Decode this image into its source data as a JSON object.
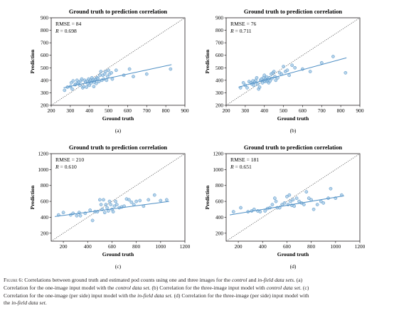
{
  "chart_data": [
    {
      "type": "scatter",
      "panel_label": "(a)",
      "title": "Ground truth to prediction correlation",
      "xlabel": "Ground truth",
      "ylabel": "Prediction",
      "xlim": [
        200,
        900
      ],
      "ylim": [
        200,
        900
      ],
      "xticks": [
        200,
        300,
        400,
        500,
        600,
        700,
        800,
        900
      ],
      "yticks": [
        200,
        300,
        400,
        500,
        600,
        700,
        800,
        900
      ],
      "stats": {
        "rmse": "RMSE = 84",
        "r": "R = 0.698"
      },
      "reference_line": "y = x (dotted)",
      "fit_line": {
        "x": [
          265,
          830
        ],
        "y": [
          340,
          525
        ]
      },
      "points": [
        [
          270,
          320
        ],
        [
          285,
          345
        ],
        [
          300,
          350
        ],
        [
          305,
          380
        ],
        [
          310,
          330
        ],
        [
          315,
          395
        ],
        [
          325,
          365
        ],
        [
          330,
          370
        ],
        [
          335,
          400
        ],
        [
          340,
          375
        ],
        [
          345,
          385
        ],
        [
          350,
          360
        ],
        [
          355,
          395
        ],
        [
          360,
          410
        ],
        [
          365,
          340
        ],
        [
          370,
          350
        ],
        [
          375,
          400
        ],
        [
          380,
          385
        ],
        [
          385,
          345
        ],
        [
          390,
          395
        ],
        [
          393,
          370
        ],
        [
          396,
          410
        ],
        [
          400,
          360
        ],
        [
          403,
          390
        ],
        [
          406,
          400
        ],
        [
          410,
          380
        ],
        [
          413,
          420
        ],
        [
          416,
          395
        ],
        [
          420,
          405
        ],
        [
          423,
          350
        ],
        [
          426,
          385
        ],
        [
          430,
          400
        ],
        [
          433,
          410
        ],
        [
          436,
          375
        ],
        [
          440,
          420
        ],
        [
          445,
          415
        ],
        [
          450,
          390
        ],
        [
          455,
          440
        ],
        [
          460,
          470
        ],
        [
          465,
          400
        ],
        [
          470,
          440
        ],
        [
          475,
          410
        ],
        [
          480,
          450
        ],
        [
          485,
          470
        ],
        [
          490,
          400
        ],
        [
          495,
          430
        ],
        [
          500,
          480
        ],
        [
          505,
          450
        ],
        [
          515,
          460
        ],
        [
          520,
          410
        ],
        [
          540,
          480
        ],
        [
          580,
          440
        ],
        [
          610,
          490
        ],
        [
          630,
          430
        ],
        [
          700,
          450
        ],
        [
          825,
          490
        ]
      ]
    },
    {
      "type": "scatter",
      "panel_label": "(b)",
      "title": "Ground truth to prediction correlation",
      "xlabel": "Ground truth",
      "ylabel": "Prediction",
      "xlim": [
        200,
        900
      ],
      "ylim": [
        200,
        900
      ],
      "xticks": [
        200,
        300,
        400,
        500,
        600,
        700,
        800,
        900
      ],
      "yticks": [
        200,
        300,
        400,
        500,
        600,
        700,
        800,
        900
      ],
      "stats": {
        "rmse": "RMSE = 76",
        "r": "R = 0.711"
      },
      "reference_line": "y = x (dotted)",
      "fit_line": {
        "x": [
          265,
          830
        ],
        "y": [
          345,
          580
        ]
      },
      "points": [
        [
          275,
          340
        ],
        [
          290,
          380
        ],
        [
          300,
          360
        ],
        [
          310,
          340
        ],
        [
          320,
          390
        ],
        [
          330,
          380
        ],
        [
          335,
          370
        ],
        [
          340,
          395
        ],
        [
          345,
          360
        ],
        [
          350,
          385
        ],
        [
          355,
          400
        ],
        [
          360,
          420
        ],
        [
          365,
          370
        ],
        [
          370,
          330
        ],
        [
          375,
          345
        ],
        [
          380,
          400
        ],
        [
          385,
          410
        ],
        [
          390,
          380
        ],
        [
          395,
          420
        ],
        [
          398,
          395
        ],
        [
          400,
          440
        ],
        [
          403,
          390
        ],
        [
          406,
          410
        ],
        [
          410,
          400
        ],
        [
          413,
          425
        ],
        [
          416,
          390
        ],
        [
          420,
          405
        ],
        [
          423,
          380
        ],
        [
          426,
          420
        ],
        [
          430,
          395
        ],
        [
          436,
          450
        ],
        [
          440,
          415
        ],
        [
          445,
          460
        ],
        [
          450,
          470
        ],
        [
          455,
          430
        ],
        [
          460,
          400
        ],
        [
          470,
          420
        ],
        [
          480,
          460
        ],
        [
          490,
          450
        ],
        [
          500,
          510
        ],
        [
          510,
          470
        ],
        [
          520,
          480
        ],
        [
          530,
          440
        ],
        [
          545,
          520
        ],
        [
          560,
          500
        ],
        [
          600,
          490
        ],
        [
          640,
          470
        ],
        [
          700,
          540
        ],
        [
          760,
          590
        ],
        [
          825,
          460
        ]
      ]
    },
    {
      "type": "scatter",
      "panel_label": "(c)",
      "title": "Ground truth to prediction correlation",
      "xlabel": "Ground truth",
      "ylabel": "Prediction",
      "xlim": [
        100,
        1200
      ],
      "ylim": [
        100,
        1200
      ],
      "xticks": [
        200,
        400,
        600,
        800,
        1000,
        1200
      ],
      "yticks": [
        200,
        400,
        600,
        800,
        1000,
        1200
      ],
      "stats": {
        "rmse": "RMSE = 210",
        "r": "R = 0.610"
      },
      "reference_line": "y = x (dotted)",
      "fit_line": {
        "x": [
          130,
          1070
        ],
        "y": [
          410,
          600
        ]
      },
      "points": [
        [
          160,
          430
        ],
        [
          200,
          460
        ],
        [
          260,
          430
        ],
        [
          280,
          450
        ],
        [
          310,
          420
        ],
        [
          330,
          460
        ],
        [
          340,
          420
        ],
        [
          380,
          450
        ],
        [
          420,
          490
        ],
        [
          440,
          360
        ],
        [
          460,
          470
        ],
        [
          480,
          470
        ],
        [
          500,
          620
        ],
        [
          510,
          560
        ],
        [
          520,
          500
        ],
        [
          530,
          620
        ],
        [
          540,
          460
        ],
        [
          550,
          560
        ],
        [
          560,
          520
        ],
        [
          570,
          480
        ],
        [
          580,
          600
        ],
        [
          590,
          560
        ],
        [
          600,
          500
        ],
        [
          610,
          470
        ],
        [
          620,
          540
        ],
        [
          630,
          600
        ],
        [
          640,
          560
        ],
        [
          660,
          520
        ],
        [
          680,
          530
        ],
        [
          700,
          540
        ],
        [
          720,
          630
        ],
        [
          740,
          620
        ],
        [
          760,
          590
        ],
        [
          780,
          560
        ],
        [
          800,
          600
        ],
        [
          830,
          610
        ],
        [
          860,
          540
        ],
        [
          900,
          620
        ],
        [
          950,
          680
        ],
        [
          1000,
          610
        ],
        [
          1050,
          620
        ]
      ]
    },
    {
      "type": "scatter",
      "panel_label": "(d)",
      "title": "Ground truth to prediction correlation",
      "xlabel": "Ground truth",
      "ylabel": "Prediction",
      "xlim": [
        100,
        1200
      ],
      "ylim": [
        100,
        1200
      ],
      "xticks": [
        200,
        400,
        600,
        800,
        1000,
        1200
      ],
      "yticks": [
        200,
        400,
        600,
        800,
        1000,
        1200
      ],
      "stats": {
        "rmse": "RMSE = 181",
        "r": "R = 0.651"
      },
      "reference_line": "y = x (dotted)",
      "fit_line": {
        "x": [
          130,
          1070
        ],
        "y": [
          430,
          670
        ]
      },
      "points": [
        [
          160,
          470
        ],
        [
          220,
          520
        ],
        [
          280,
          470
        ],
        [
          310,
          480
        ],
        [
          330,
          500
        ],
        [
          360,
          480
        ],
        [
          380,
          470
        ],
        [
          420,
          480
        ],
        [
          440,
          510
        ],
        [
          460,
          520
        ],
        [
          480,
          560
        ],
        [
          500,
          640
        ],
        [
          510,
          600
        ],
        [
          520,
          520
        ],
        [
          540,
          520
        ],
        [
          560,
          560
        ],
        [
          580,
          580
        ],
        [
          600,
          660
        ],
        [
          610,
          560
        ],
        [
          620,
          680
        ],
        [
          630,
          600
        ],
        [
          640,
          550
        ],
        [
          650,
          620
        ],
        [
          660,
          540
        ],
        [
          680,
          640
        ],
        [
          700,
          600
        ],
        [
          720,
          580
        ],
        [
          740,
          560
        ],
        [
          760,
          720
        ],
        [
          780,
          640
        ],
        [
          800,
          620
        ],
        [
          820,
          500
        ],
        [
          850,
          560
        ],
        [
          880,
          600
        ],
        [
          900,
          580
        ],
        [
          940,
          640
        ],
        [
          960,
          760
        ],
        [
          1000,
          640
        ],
        [
          1050,
          680
        ]
      ]
    }
  ],
  "caption": {
    "label": "Figure 6:",
    "lines": [
      [
        {
          "t": "Correlations between ground truth and estimated pod counts using one and three images for the ",
          "i": false
        },
        {
          "t": "control",
          "i": true
        },
        {
          "t": " and ",
          "i": false
        },
        {
          "t": "in-field data sets",
          "i": true
        },
        {
          "t": ". (a)",
          "i": false
        }
      ],
      [
        {
          "t": "Correlation for the one-image input model with the ",
          "i": false
        },
        {
          "t": "control data set",
          "i": true
        },
        {
          "t": ". (b) Correlation for the three-image input model with ",
          "i": false
        },
        {
          "t": "control data set",
          "i": true
        },
        {
          "t": ". (c)",
          "i": false
        }
      ],
      [
        {
          "t": "Correlation for the one-image (per side) input model with the ",
          "i": false
        },
        {
          "t": "in-field data set",
          "i": true
        },
        {
          "t": ". (d) Correlation for the three-image (per side) input model with",
          "i": false
        }
      ],
      [
        {
          "t": "the ",
          "i": false
        },
        {
          "t": "in-field data set",
          "i": true
        },
        {
          "t": ".",
          "i": false
        }
      ]
    ]
  },
  "colors": {
    "point_fill": "#9ec5e4",
    "point_stroke": "#4f8fc4",
    "fit_line": "#4f8fc4",
    "axis": "#231f20",
    "reference_line": "#555555"
  }
}
